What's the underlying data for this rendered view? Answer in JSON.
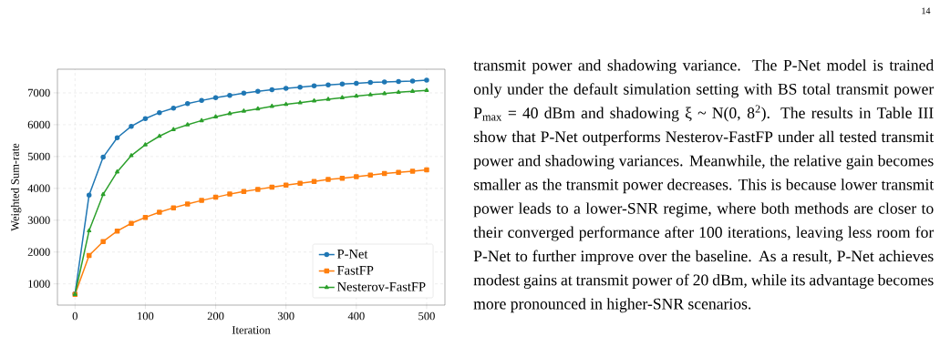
{
  "chart_data": {
    "type": "line",
    "xlabel": "Iteration",
    "ylabel": "Weighted Sum-rate",
    "x": [
      0,
      20,
      40,
      60,
      80,
      100,
      120,
      140,
      160,
      180,
      200,
      220,
      240,
      260,
      280,
      300,
      320,
      340,
      360,
      380,
      400,
      420,
      440,
      460,
      480,
      500
    ],
    "series": [
      {
        "name": "P-Net",
        "color": "#1f77b4",
        "marker": "circle",
        "values": [
          690,
          3790,
          4980,
          5590,
          5950,
          6190,
          6380,
          6520,
          6660,
          6760,
          6850,
          6920,
          6990,
          7050,
          7100,
          7140,
          7180,
          7220,
          7250,
          7280,
          7300,
          7330,
          7340,
          7360,
          7370,
          7400
        ]
      },
      {
        "name": "FastFP",
        "color": "#ff7f0e",
        "marker": "square",
        "values": [
          670,
          1890,
          2330,
          2660,
          2900,
          3090,
          3250,
          3390,
          3510,
          3620,
          3720,
          3820,
          3900,
          3970,
          4040,
          4100,
          4160,
          4220,
          4280,
          4320,
          4370,
          4420,
          4470,
          4500,
          4540,
          4580
        ]
      },
      {
        "name": "Nesterov-FastFP",
        "color": "#2ca02c",
        "marker": "triangle",
        "values": [
          670,
          2670,
          3810,
          4520,
          5030,
          5370,
          5640,
          5850,
          6000,
          6130,
          6250,
          6350,
          6430,
          6500,
          6580,
          6640,
          6690,
          6750,
          6800,
          6850,
          6900,
          6940,
          6980,
          7020,
          7050,
          7080
        ]
      }
    ],
    "xlim": [
      -25,
      526
    ],
    "ylim": [
      333,
      7743
    ],
    "xticks": [
      0,
      100,
      200,
      300,
      400,
      500
    ],
    "yticks": [
      1000,
      2000,
      3000,
      4000,
      5000,
      6000,
      7000
    ],
    "grid": true,
    "legend": "bottom right",
    "line_style": "solid",
    "annotations": [
      "14",
      "transmit power and shadowing variance. The P-Net model is trained only under the default simulation setting with BS total transmit power P$_{max}$ = 40 dBm and shadowing ξ ~ N(0, 8$^{2}$). The results in Table III show that P-Net outperforms Nesterov-FastFP under all tested transmit power and shadowing variances. Meanwhile, the relative gain becomes smaller as the transmit power decreases. This is because lower transmit power leads to a lower-SNR regime, where both methods are closer to their converged performance after 100 iterations, leaving less room for P-Net to further improve over the baseline. As a result, P-Net achieves modest gains at transmit power of 20 dBm, while its advantage becomes more pronounced in higher-SNR scenarios."
    ]
  }
}
